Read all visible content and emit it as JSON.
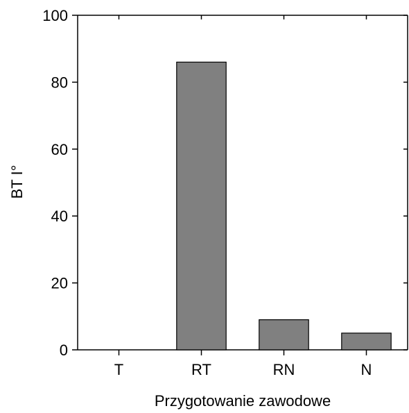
{
  "chart_data": {
    "type": "bar",
    "categories": [
      "T",
      "RT",
      "RN",
      "N"
    ],
    "values": [
      0,
      86,
      9,
      5
    ],
    "xlabel": "Przygotowanie zawodowe",
    "ylabel": "BT I°",
    "ylim": [
      0,
      100
    ],
    "yticks": [
      0,
      20,
      40,
      60,
      80,
      100
    ],
    "grid": false,
    "legend": "none",
    "colors": {
      "bar_fill": "#808080",
      "bar_stroke": "#000000",
      "axis": "#000000"
    }
  }
}
